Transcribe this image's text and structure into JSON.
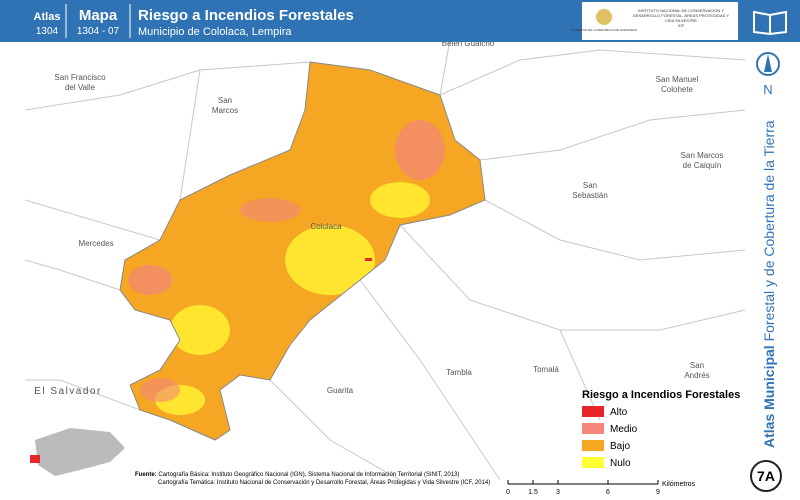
{
  "header": {
    "atlas_label": "Atlas",
    "atlas_number": "1304",
    "map_label": "Mapa",
    "map_number": "1304 - 07",
    "title": "Riesgo a Incendios Forestales",
    "subtitle": "Municipio de Cololaca, Lempira",
    "logo_left": "GOBIERNO DE LA REPÚBLICA DE HONDURAS",
    "logo_right": "INSTITUTO NACIONAL DE CONSERVACIÓN Y DESARROLLO FORESTAL, ÁREAS PROTEGIDAS Y VIDA SILVESTRE",
    "logo_right_abbr": "ICF"
  },
  "places": [
    {
      "lines": [
        "Belén Gualcho"
      ]
    },
    {
      "lines": [
        "San Francisco",
        "del Valle"
      ]
    },
    {
      "lines": [
        "San",
        "Marcos"
      ]
    },
    {
      "lines": [
        "San Manuel",
        "Colohete"
      ]
    },
    {
      "lines": [
        "San Marcos",
        "de Caiquín"
      ]
    },
    {
      "lines": [
        "San",
        "Sebastián"
      ]
    },
    {
      "lines": [
        "Mercedes"
      ]
    },
    {
      "lines": [
        "Cololaca"
      ]
    },
    {
      "lines": [
        "El Salvador"
      ]
    },
    {
      "lines": [
        "Guarita"
      ]
    },
    {
      "lines": [
        "Tambla"
      ]
    },
    {
      "lines": [
        "Tomalá"
      ]
    },
    {
      "lines": [
        "San",
        "Andrés"
      ]
    }
  ],
  "legend": {
    "title": "Riesgo a Incendios Forestales",
    "items": [
      {
        "label": "Alto",
        "color": "#e8262a"
      },
      {
        "label": "Medio",
        "color": "#f4877a"
      },
      {
        "label": "Bajo",
        "color": "#f5a623"
      },
      {
        "label": "Nulo",
        "color": "#ffff33"
      }
    ]
  },
  "scale": {
    "ticks": [
      0,
      1.5,
      3,
      6,
      9
    ],
    "unit": "Kilómetros"
  },
  "source": {
    "label": "Fuente:",
    "lines": [
      "Cartografía Básica: Instituto Geográfico Nacional (IGN), Sistema Nacional de Información Territorial (SINIT, 2013)",
      "Cartografía Temática: Instituto Nacional de Conservación y Desarrollo Forestal, Áreas Protegidas y Vida Silvestre (ICF, 2014)"
    ]
  },
  "side": {
    "title_bold": "Atlas Municipal",
    "title_rest": "Forestal y de Cobertura de la Tierra",
    "north": "N",
    "badge": "7A"
  }
}
